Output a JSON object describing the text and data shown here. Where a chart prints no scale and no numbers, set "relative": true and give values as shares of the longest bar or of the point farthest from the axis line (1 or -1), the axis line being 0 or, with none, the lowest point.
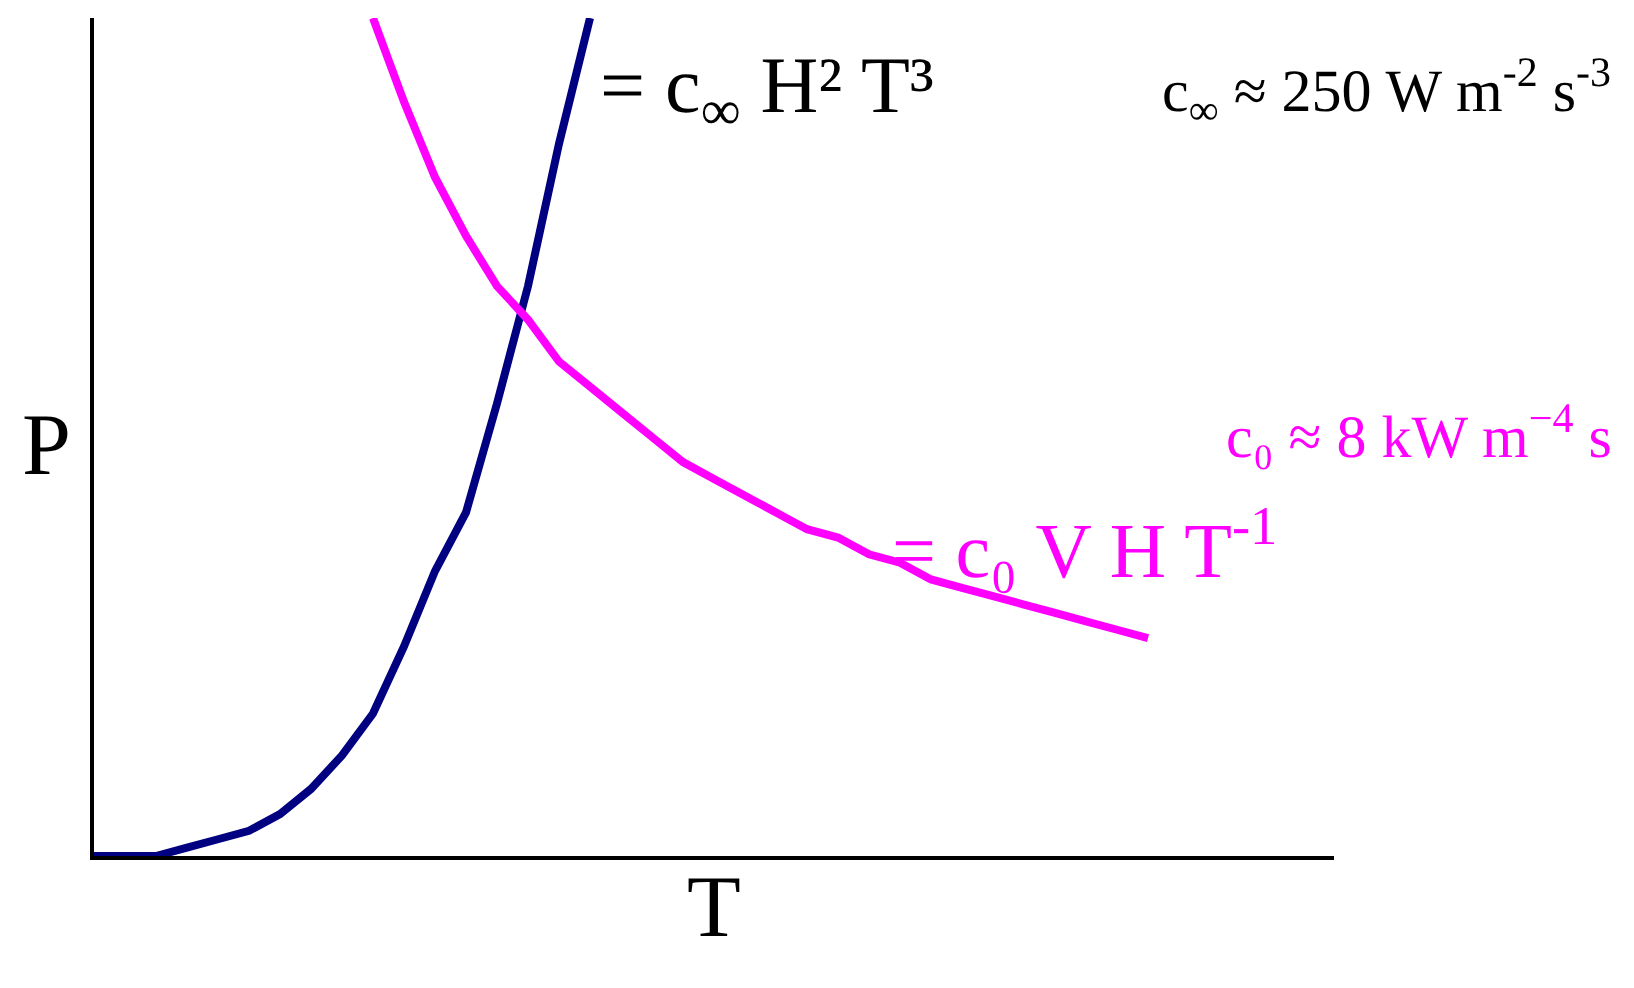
{
  "chart_data": {
    "type": "line",
    "relative": true,
    "xlabel": "T",
    "ylabel": "P",
    "categories": [
      null,
      null,
      null,
      null,
      null,
      null,
      null,
      null,
      null,
      null,
      null,
      null,
      null,
      null,
      null,
      null,
      null,
      null,
      null,
      null,
      null,
      null,
      null,
      null,
      null,
      null,
      null,
      null,
      null,
      null,
      null,
      null,
      null,
      null,
      null,
      null,
      null,
      null,
      null,
      null,
      null
    ],
    "series": [
      {
        "name": "= c$_{∞}$ H² T³",
        "color": "#000080",
        "values": [
          0,
          0,
          0,
          0.01,
          0.02,
          0.03,
          0.05,
          0.08,
          0.12,
          0.17,
          0.25,
          0.34,
          0.41,
          0.54,
          0.68,
          0.85,
          1.0,
          null,
          null,
          null,
          null,
          null,
          null,
          null,
          null,
          null,
          null,
          null,
          null,
          null,
          null,
          null,
          null,
          null,
          null,
          null,
          null,
          null,
          null,
          null,
          null
        ]
      },
      {
        "name": "= c₀ V H T$^{-1}$",
        "color": "#ff00ff",
        "values": [
          null,
          null,
          null,
          null,
          null,
          null,
          null,
          null,
          null,
          1.0,
          0.9,
          0.81,
          0.74,
          0.68,
          0.64,
          0.59,
          0.56,
          0.53,
          0.5,
          0.47,
          0.45,
          0.43,
          0.41,
          0.39,
          0.38,
          0.36,
          0.35,
          0.33,
          0.32,
          0.31,
          0.3,
          0.29,
          0.28,
          0.27,
          0.26,
          null,
          null,
          null,
          null,
          null,
          null
        ]
      }
    ],
    "annotations": [
      "c$_{∞}$ ≈ 250 W m$^{-2}$ s$^{-3}$",
      "c₀ ≈ 8 kW m$^{−4}$ s"
    ],
    "legend": false,
    "marker": "none",
    "line_style": "solid"
  }
}
